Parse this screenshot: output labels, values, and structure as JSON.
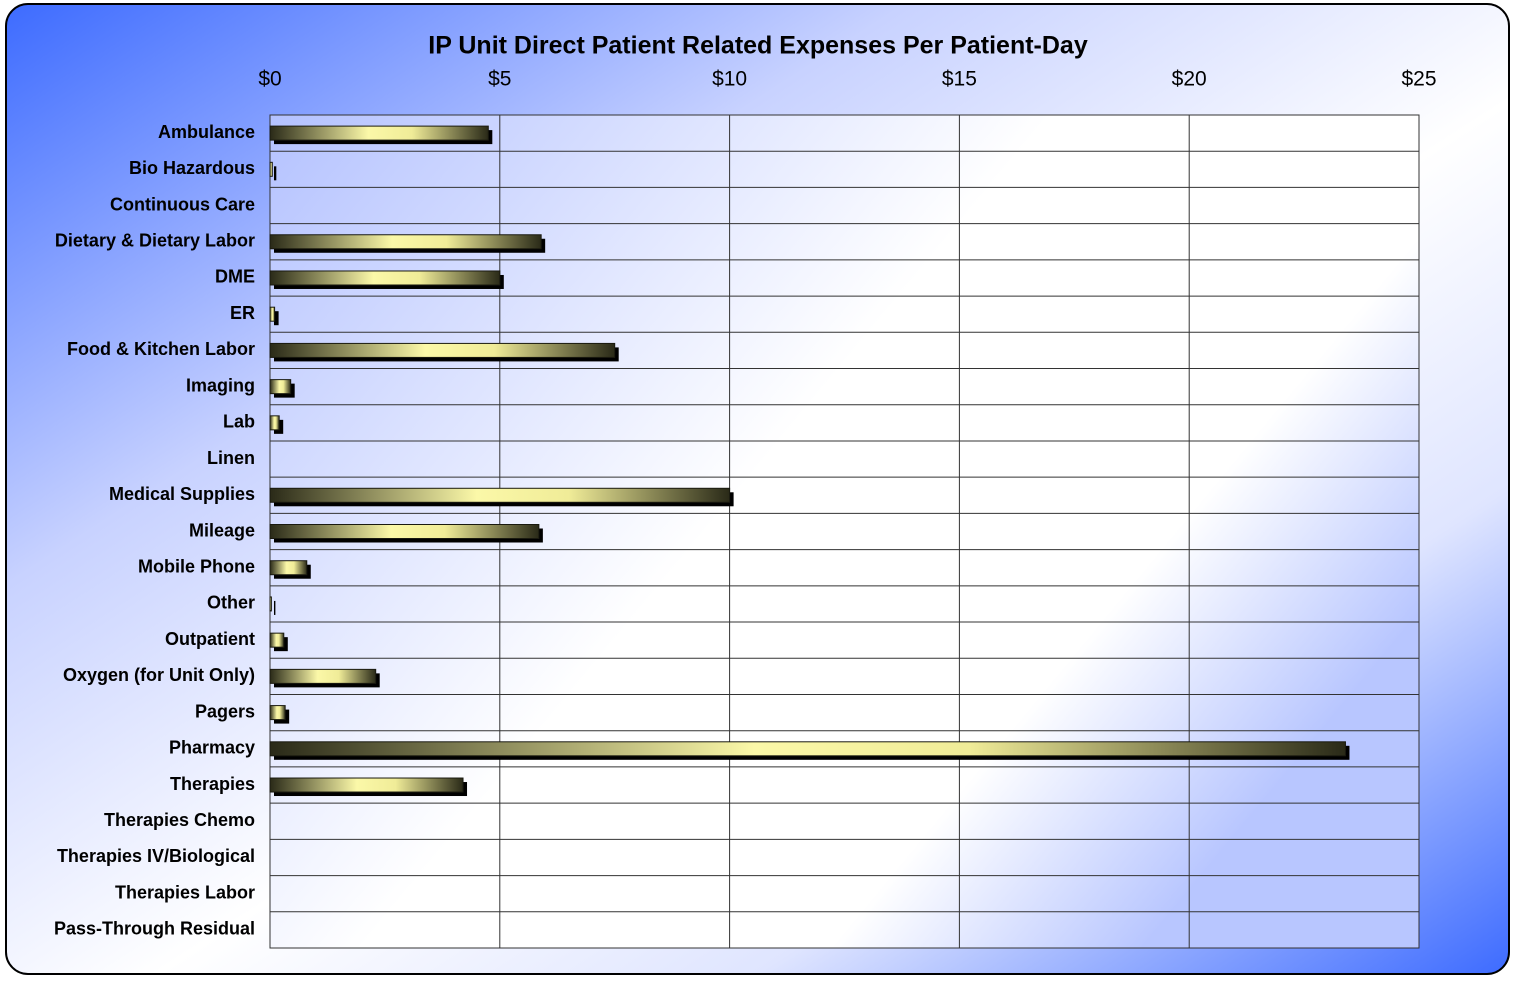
{
  "chart_data": {
    "type": "bar",
    "orientation": "horizontal",
    "title": "IP Unit Direct Patient Related Expenses Per Patient-Day",
    "categories": [
      "Ambulance",
      "Bio Hazardous",
      "Continuous Care",
      "Dietary & Dietary Labor",
      "DME",
      "ER",
      "Food & Kitchen Labor",
      "Imaging",
      "Lab",
      "Linen",
      "Medical Supplies",
      "Mileage",
      "Mobile Phone",
      "Other",
      "Outpatient",
      "Oxygen (for Unit Only)",
      "Pagers",
      "Pharmacy",
      "Therapies",
      "Therapies Chemo",
      "Therapies IV/Biological",
      "Therapies Labor",
      "Pass-Through Residual"
    ],
    "values": [
      4.75,
      0.05,
      0,
      5.9,
      5.0,
      0.1,
      7.5,
      0.45,
      0.2,
      0,
      10.0,
      5.85,
      0.8,
      0.03,
      0.3,
      2.3,
      0.33,
      23.4,
      4.2,
      0,
      0,
      0,
      0
    ],
    "color": "#f4f0a0",
    "xlim": [
      0,
      25
    ],
    "xticks": [
      {
        "value": 0,
        "label": "$0"
      },
      {
        "value": 5,
        "label": "$5"
      },
      {
        "value": 10,
        "label": "$10"
      },
      {
        "value": 15,
        "label": "$15"
      },
      {
        "value": 20,
        "label": "$20"
      },
      {
        "value": 25,
        "label": "$25"
      }
    ],
    "grid": true
  }
}
